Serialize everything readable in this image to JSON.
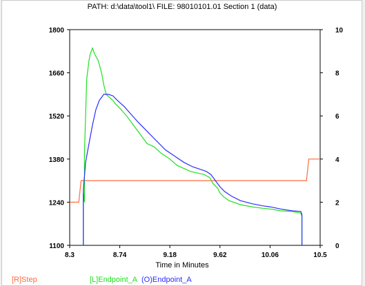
{
  "chart_data": {
    "type": "line",
    "title": "PATH: d:\\data\\tool1\\ FILE: 98010101.01 Section 1 (data)",
    "xlabel": "Time in Minutes",
    "x_ticks": [
      "8.3",
      "8.74",
      "9.18",
      "9.62",
      "10.06",
      "10.5"
    ],
    "y_left_ticks": [
      "1100",
      "1240",
      "1380",
      "1520",
      "1660",
      "1800"
    ],
    "y_right_ticks": [
      "0",
      "2",
      "4",
      "6",
      "8",
      "10"
    ],
    "xlim": [
      8.3,
      10.5
    ],
    "ylim_left": [
      1100,
      1800
    ],
    "ylim_right": [
      0,
      10
    ],
    "grid": false,
    "legend_position": "bottom-left",
    "series": [
      {
        "name": "[R]Step",
        "color": "#ff6a3d",
        "axis": "right",
        "x": [
          8.3,
          8.38,
          8.4,
          10.38,
          10.4,
          10.5
        ],
        "y": [
          2,
          2,
          3,
          3,
          4,
          4
        ]
      },
      {
        "name": "[L]Endpoint_A",
        "color": "#1ee01e",
        "axis": "left",
        "x": [
          8.42,
          8.42,
          8.43,
          8.43,
          8.45,
          8.47,
          8.48,
          8.5,
          8.52,
          8.55,
          8.58,
          8.6,
          8.62,
          8.65,
          8.68,
          8.7,
          8.74,
          8.8,
          8.86,
          8.92,
          8.98,
          9.04,
          9.1,
          9.18,
          9.24,
          9.3,
          9.36,
          9.42,
          9.48,
          9.53,
          9.56,
          9.6,
          9.62,
          9.66,
          9.7,
          9.8,
          9.9,
          10.0,
          10.06,
          10.15,
          10.25,
          10.33,
          10.34,
          10.34
        ],
        "y": [
          1100,
          1270,
          1240,
          1400,
          1640,
          1700,
          1720,
          1740,
          1720,
          1700,
          1660,
          1620,
          1590,
          1580,
          1570,
          1560,
          1545,
          1520,
          1490,
          1460,
          1430,
          1420,
          1400,
          1380,
          1360,
          1350,
          1340,
          1335,
          1330,
          1320,
          1300,
          1285,
          1270,
          1255,
          1245,
          1232,
          1225,
          1220,
          1218,
          1212,
          1210,
          1205,
          1195,
          1100
        ]
      },
      {
        "name": "(O)Endpoint_A",
        "color": "#2b2bff",
        "axis": "left",
        "x": [
          8.42,
          8.42,
          8.44,
          8.47,
          8.5,
          8.53,
          8.56,
          8.6,
          8.64,
          8.68,
          8.72,
          8.78,
          8.84,
          8.9,
          8.98,
          9.06,
          9.14,
          9.22,
          9.3,
          9.38,
          9.46,
          9.5,
          9.54,
          9.56,
          9.6,
          9.62,
          9.66,
          9.72,
          9.8,
          9.9,
          10.0,
          10.06,
          10.15,
          10.25,
          10.33,
          10.34,
          10.34
        ],
        "y": [
          1100,
          1280,
          1370,
          1430,
          1490,
          1540,
          1570,
          1590,
          1590,
          1585,
          1570,
          1550,
          1525,
          1500,
          1470,
          1440,
          1410,
          1390,
          1370,
          1355,
          1345,
          1340,
          1330,
          1320,
          1300,
          1290,
          1275,
          1260,
          1245,
          1235,
          1228,
          1225,
          1218,
          1212,
          1210,
          1200,
          1100
        ]
      }
    ]
  }
}
